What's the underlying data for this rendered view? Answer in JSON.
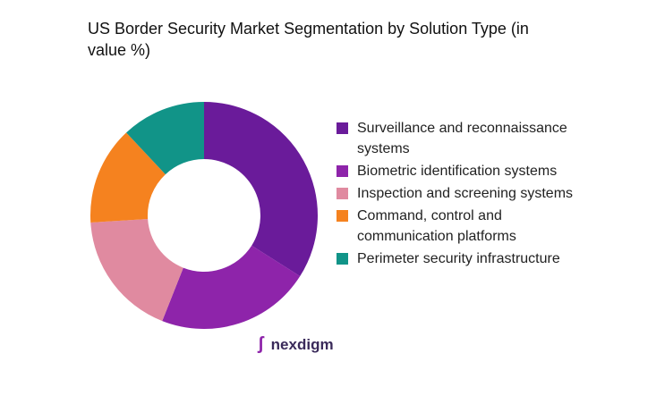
{
  "chart_data": {
    "type": "donut",
    "title": "US Border Security Market Segmentation by Solution Type (in value %)",
    "categories": [
      "Surveillance and reconnaissance systems",
      "Biometric identification systems",
      "Inspection and screening systems",
      "Command, control and communication platforms",
      "Perimeter security infrastructure"
    ],
    "values": [
      34,
      22,
      18,
      14,
      12
    ],
    "colors": [
      "#6a1b9a",
      "#8e24aa",
      "#e08aa0",
      "#f5821f",
      "#119488"
    ]
  },
  "logo": {
    "text": "nexdigm"
  }
}
